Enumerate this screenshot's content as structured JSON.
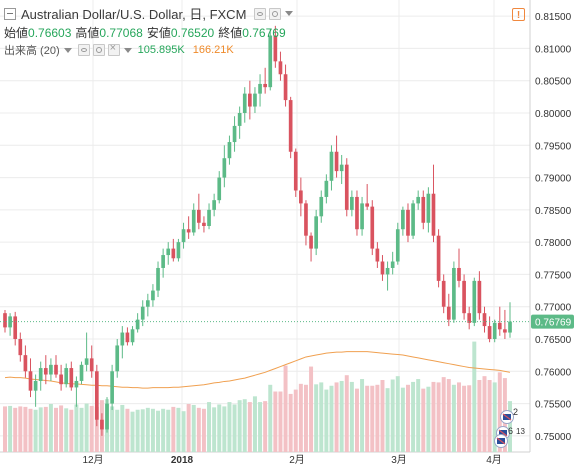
{
  "legend": {
    "symbol": "Australian Dollar/U.S. Dollar, 日, FXCM",
    "ohlc": [
      {
        "label": "始値",
        "value": "0.76603"
      },
      {
        "label": "高値",
        "value": "0.77068"
      },
      {
        "label": "安値",
        "value": "0.76520"
      },
      {
        "label": "終値",
        "value": "0.76769"
      }
    ],
    "volume_label": "出来高 (20)",
    "volume_value": "105.895K",
    "volume_ma_value": "166.21K",
    "warning_glyph": "!"
  },
  "colors": {
    "up": "#5cba87",
    "down": "#d9535f",
    "up_volume": "#bde5cf",
    "down_volume": "#f3c1c5",
    "volume_ma": "#f0a050",
    "price_line": "#5cba87",
    "grid": "#ececec",
    "badge_bg": "#5cba87",
    "axis_text": "#333333",
    "value_green": "#26a65b",
    "value_orange": "#ef8a2a"
  },
  "chart_data": {
    "type": "candlestick",
    "x_ticks": [
      "12月",
      "2018",
      "2月",
      "3月",
      "4月"
    ],
    "y_ticks": [
      "0.81500",
      "0.81000",
      "0.80500",
      "0.80000",
      "0.79500",
      "0.79000",
      "0.78500",
      "0.78000",
      "0.77500",
      "0.77000",
      "0.76500",
      "0.76000",
      "0.75500",
      "0.75000"
    ],
    "ylim": [
      0.7475,
      0.8175
    ],
    "last_price_badge": "0.76769",
    "last_price": 0.76769,
    "grid": true,
    "event_badges": {
      "count_a": "2",
      "count_b": "6",
      "count_c": "13"
    },
    "candles_ohlc": [
      [
        0.769,
        0.7695,
        0.766,
        0.7668
      ],
      [
        0.7668,
        0.769,
        0.7655,
        0.7685
      ],
      [
        0.7685,
        0.7692,
        0.764,
        0.765
      ],
      [
        0.765,
        0.766,
        0.7615,
        0.7625
      ],
      [
        0.7625,
        0.764,
        0.759,
        0.76
      ],
      [
        0.76,
        0.762,
        0.756,
        0.757
      ],
      [
        0.757,
        0.7595,
        0.7545,
        0.7585
      ],
      [
        0.7585,
        0.7615,
        0.757,
        0.7605
      ],
      [
        0.7605,
        0.7625,
        0.758,
        0.7595
      ],
      [
        0.7595,
        0.762,
        0.7585,
        0.761
      ],
      [
        0.761,
        0.7625,
        0.759,
        0.7595
      ],
      [
        0.7595,
        0.761,
        0.757,
        0.758
      ],
      [
        0.758,
        0.7612,
        0.7575,
        0.7605
      ],
      [
        0.7605,
        0.7615,
        0.757,
        0.7575
      ],
      [
        0.7575,
        0.7592,
        0.7545,
        0.7585
      ],
      [
        0.7585,
        0.7615,
        0.758,
        0.761
      ],
      [
        0.761,
        0.766,
        0.76,
        0.762
      ],
      [
        0.762,
        0.764,
        0.759,
        0.76
      ],
      [
        0.76,
        0.761,
        0.7515,
        0.7525
      ],
      [
        0.7525,
        0.7535,
        0.75,
        0.751
      ],
      [
        0.751,
        0.756,
        0.7505,
        0.755
      ],
      [
        0.755,
        0.761,
        0.754,
        0.76
      ],
      [
        0.76,
        0.765,
        0.759,
        0.764
      ],
      [
        0.764,
        0.767,
        0.762,
        0.766
      ],
      [
        0.766,
        0.7668,
        0.764,
        0.7645
      ],
      [
        0.7645,
        0.767,
        0.764,
        0.7665
      ],
      [
        0.7665,
        0.769,
        0.766,
        0.768
      ],
      [
        0.768,
        0.771,
        0.767,
        0.77
      ],
      [
        0.77,
        0.772,
        0.7685,
        0.771
      ],
      [
        0.771,
        0.7735,
        0.77,
        0.7725
      ],
      [
        0.7725,
        0.777,
        0.7715,
        0.776
      ],
      [
        0.776,
        0.779,
        0.7745,
        0.778
      ],
      [
        0.778,
        0.78,
        0.7765,
        0.779
      ],
      [
        0.779,
        0.7805,
        0.777,
        0.7775
      ],
      [
        0.7775,
        0.7805,
        0.777,
        0.78
      ],
      [
        0.78,
        0.783,
        0.779,
        0.782
      ],
      [
        0.782,
        0.784,
        0.7805,
        0.7815
      ],
      [
        0.7815,
        0.786,
        0.781,
        0.785
      ],
      [
        0.785,
        0.7875,
        0.782,
        0.783
      ],
      [
        0.783,
        0.784,
        0.7815,
        0.7825
      ],
      [
        0.7825,
        0.786,
        0.782,
        0.785
      ],
      [
        0.785,
        0.7875,
        0.784,
        0.7865
      ],
      [
        0.7865,
        0.791,
        0.786,
        0.79
      ],
      [
        0.79,
        0.795,
        0.7885,
        0.793
      ],
      [
        0.793,
        0.7965,
        0.792,
        0.7955
      ],
      [
        0.7955,
        0.7995,
        0.794,
        0.798
      ],
      [
        0.798,
        0.801,
        0.796,
        0.8
      ],
      [
        0.8,
        0.804,
        0.7985,
        0.803
      ],
      [
        0.803,
        0.805,
        0.799,
        0.801
      ],
      [
        0.801,
        0.804,
        0.8,
        0.803
      ],
      [
        0.803,
        0.806,
        0.801,
        0.8045
      ],
      [
        0.8045,
        0.807,
        0.803,
        0.804
      ],
      [
        0.804,
        0.813,
        0.8035,
        0.812
      ],
      [
        0.812,
        0.8135,
        0.807,
        0.808
      ],
      [
        0.808,
        0.8095,
        0.805,
        0.806
      ],
      [
        0.806,
        0.8075,
        0.801,
        0.802
      ],
      [
        0.802,
        0.8025,
        0.793,
        0.794
      ],
      [
        0.794,
        0.7945,
        0.787,
        0.788
      ],
      [
        0.788,
        0.79,
        0.784,
        0.786
      ],
      [
        0.786,
        0.7865,
        0.7795,
        0.781
      ],
      [
        0.781,
        0.7815,
        0.777,
        0.779
      ],
      [
        0.779,
        0.785,
        0.778,
        0.784
      ],
      [
        0.784,
        0.788,
        0.783,
        0.787
      ],
      [
        0.787,
        0.7905,
        0.786,
        0.7895
      ],
      [
        0.7895,
        0.795,
        0.788,
        0.794
      ],
      [
        0.794,
        0.7965,
        0.79,
        0.791
      ],
      [
        0.791,
        0.7935,
        0.789,
        0.792
      ],
      [
        0.792,
        0.793,
        0.784,
        0.785
      ],
      [
        0.785,
        0.788,
        0.784,
        0.787
      ],
      [
        0.787,
        0.788,
        0.781,
        0.782
      ],
      [
        0.782,
        0.787,
        0.781,
        0.786
      ],
      [
        0.786,
        0.789,
        0.785,
        0.7855
      ],
      [
        0.7855,
        0.7865,
        0.778,
        0.779
      ],
      [
        0.779,
        0.78,
        0.776,
        0.777
      ],
      [
        0.777,
        0.778,
        0.774,
        0.775
      ],
      [
        0.775,
        0.777,
        0.7725,
        0.776
      ],
      [
        0.776,
        0.7785,
        0.775,
        0.777
      ],
      [
        0.777,
        0.783,
        0.7765,
        0.782
      ],
      [
        0.782,
        0.7855,
        0.781,
        0.785
      ],
      [
        0.785,
        0.786,
        0.78,
        0.781
      ],
      [
        0.781,
        0.7865,
        0.7805,
        0.786
      ],
      [
        0.786,
        0.788,
        0.785,
        0.787
      ],
      [
        0.787,
        0.788,
        0.782,
        0.783
      ],
      [
        0.783,
        0.7885,
        0.7815,
        0.7875
      ],
      [
        0.7875,
        0.792,
        0.78,
        0.781
      ],
      [
        0.781,
        0.782,
        0.773,
        0.774
      ],
      [
        0.774,
        0.775,
        0.769,
        0.77
      ],
      [
        0.77,
        0.772,
        0.767,
        0.768
      ],
      [
        0.768,
        0.777,
        0.7675,
        0.776
      ],
      [
        0.776,
        0.779,
        0.773,
        0.774
      ],
      [
        0.774,
        0.775,
        0.768,
        0.769
      ],
      [
        0.769,
        0.77,
        0.7665,
        0.7675
      ],
      [
        0.7675,
        0.7745,
        0.767,
        0.774
      ],
      [
        0.774,
        0.7755,
        0.768,
        0.769
      ],
      [
        0.769,
        0.77,
        0.766,
        0.767
      ],
      [
        0.767,
        0.7685,
        0.7645,
        0.765
      ],
      [
        0.765,
        0.768,
        0.7645,
        0.7675
      ],
      [
        0.7675,
        0.77,
        0.7655,
        0.7665
      ],
      [
        0.7665,
        0.7695,
        0.765,
        0.766
      ],
      [
        0.766,
        0.7707,
        0.7652,
        0.7677
      ]
    ],
    "volume_k": [
      95,
      96,
      92,
      95,
      94,
      90,
      88,
      93,
      94,
      100,
      92,
      97,
      91,
      88,
      99,
      92,
      101,
      96,
      94,
      108,
      110,
      95,
      88,
      98,
      90,
      84,
      88,
      89,
      92,
      90,
      86,
      90,
      88,
      94,
      92,
      85,
      100,
      98,
      92,
      90,
      104,
      93,
      99,
      95,
      104,
      99,
      108,
      110,
      104,
      116,
      104,
      106,
      140,
      126,
      126,
      180,
      121,
      130,
      142,
      140,
      178,
      141,
      145,
      130,
      138,
      145,
      148,
      160,
      146,
      132,
      152,
      138,
      138,
      140,
      150,
      133,
      151,
      158,
      134,
      140,
      146,
      152,
      132,
      136,
      146,
      145,
      156,
      152,
      140,
      145,
      138,
      139,
      230,
      150,
      158,
      150,
      145,
      166,
      154,
      106
    ],
    "volume_ma_k": [
      155,
      156,
      155,
      155,
      154,
      152,
      151,
      150,
      149,
      148,
      146,
      144,
      143,
      142,
      142,
      141,
      140,
      139,
      139,
      138,
      138,
      137,
      136,
      135,
      135,
      134,
      134,
      133,
      133,
      134,
      134,
      134,
      134,
      135,
      135,
      136,
      137,
      138,
      139,
      140,
      142,
      144,
      145,
      147,
      148,
      150,
      152,
      154,
      157,
      160,
      163,
      166,
      170,
      174,
      178,
      182,
      186,
      190,
      194,
      198,
      200,
      202,
      204,
      206,
      207,
      208,
      208,
      209,
      209,
      209,
      209,
      209,
      208,
      207,
      206,
      205,
      204,
      203,
      202,
      200,
      198,
      196,
      194,
      192,
      190,
      188,
      186,
      184,
      182,
      180,
      178,
      176,
      175,
      174,
      173,
      172,
      171,
      170,
      168,
      166
    ]
  }
}
